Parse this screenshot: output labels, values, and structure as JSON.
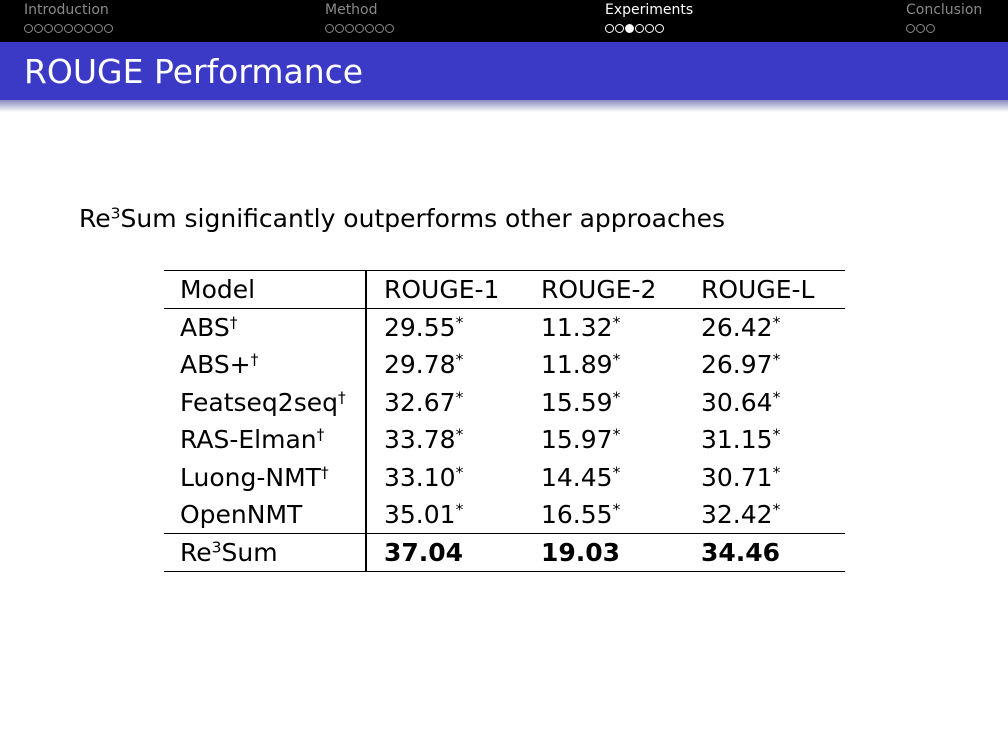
{
  "nav": {
    "sections": [
      {
        "label": "Introduction",
        "dots": 9,
        "current": -1
      },
      {
        "label": "Method",
        "dots": 7,
        "current": -1
      },
      {
        "label": "Experiments",
        "dots": 6,
        "current": 2
      },
      {
        "label": "Conclusion",
        "dots": 3,
        "current": -1
      }
    ],
    "active_section": 2
  },
  "slide": {
    "title": "ROUGE Performance",
    "lead_base": "Re",
    "lead_sup": "3",
    "lead_rest": "Sum significantly outperforms other approaches"
  },
  "table": {
    "headers": [
      "Model",
      "ROUGE-1",
      "ROUGE-2",
      "ROUGE-L"
    ],
    "rows": [
      {
        "model": "ABS",
        "model_sup": "†",
        "r1": "29.55",
        "r2": "11.32",
        "rl": "26.42",
        "mark": "*"
      },
      {
        "model": "ABS+",
        "model_sup": "†",
        "r1": "29.78",
        "r2": "11.89",
        "rl": "26.97",
        "mark": "*"
      },
      {
        "model": "Featseq2seq",
        "model_sup": "†",
        "r1": "32.67",
        "r2": "15.59",
        "rl": "30.64",
        "mark": "*"
      },
      {
        "model": "RAS-Elman",
        "model_sup": "†",
        "r1": "33.78",
        "r2": "15.97",
        "rl": "31.15",
        "mark": "*"
      },
      {
        "model": "Luong-NMT",
        "model_sup": "†",
        "r1": "33.10",
        "r2": "14.45",
        "rl": "30.71",
        "mark": "*"
      },
      {
        "model": "OpenNMT",
        "model_sup": "",
        "r1": "35.01",
        "r2": "16.55",
        "rl": "32.42",
        "mark": "*"
      }
    ],
    "final": {
      "model": "Re",
      "model_sup": "3",
      "model_rest": "Sum",
      "r1": "37.04",
      "r2": "19.03",
      "rl": "34.46"
    }
  },
  "colors": {
    "navbar": "#000000",
    "titlebar": "#3a3ac6",
    "nav_inactive": "#8a8a8a",
    "nav_active": "#ffffff"
  }
}
